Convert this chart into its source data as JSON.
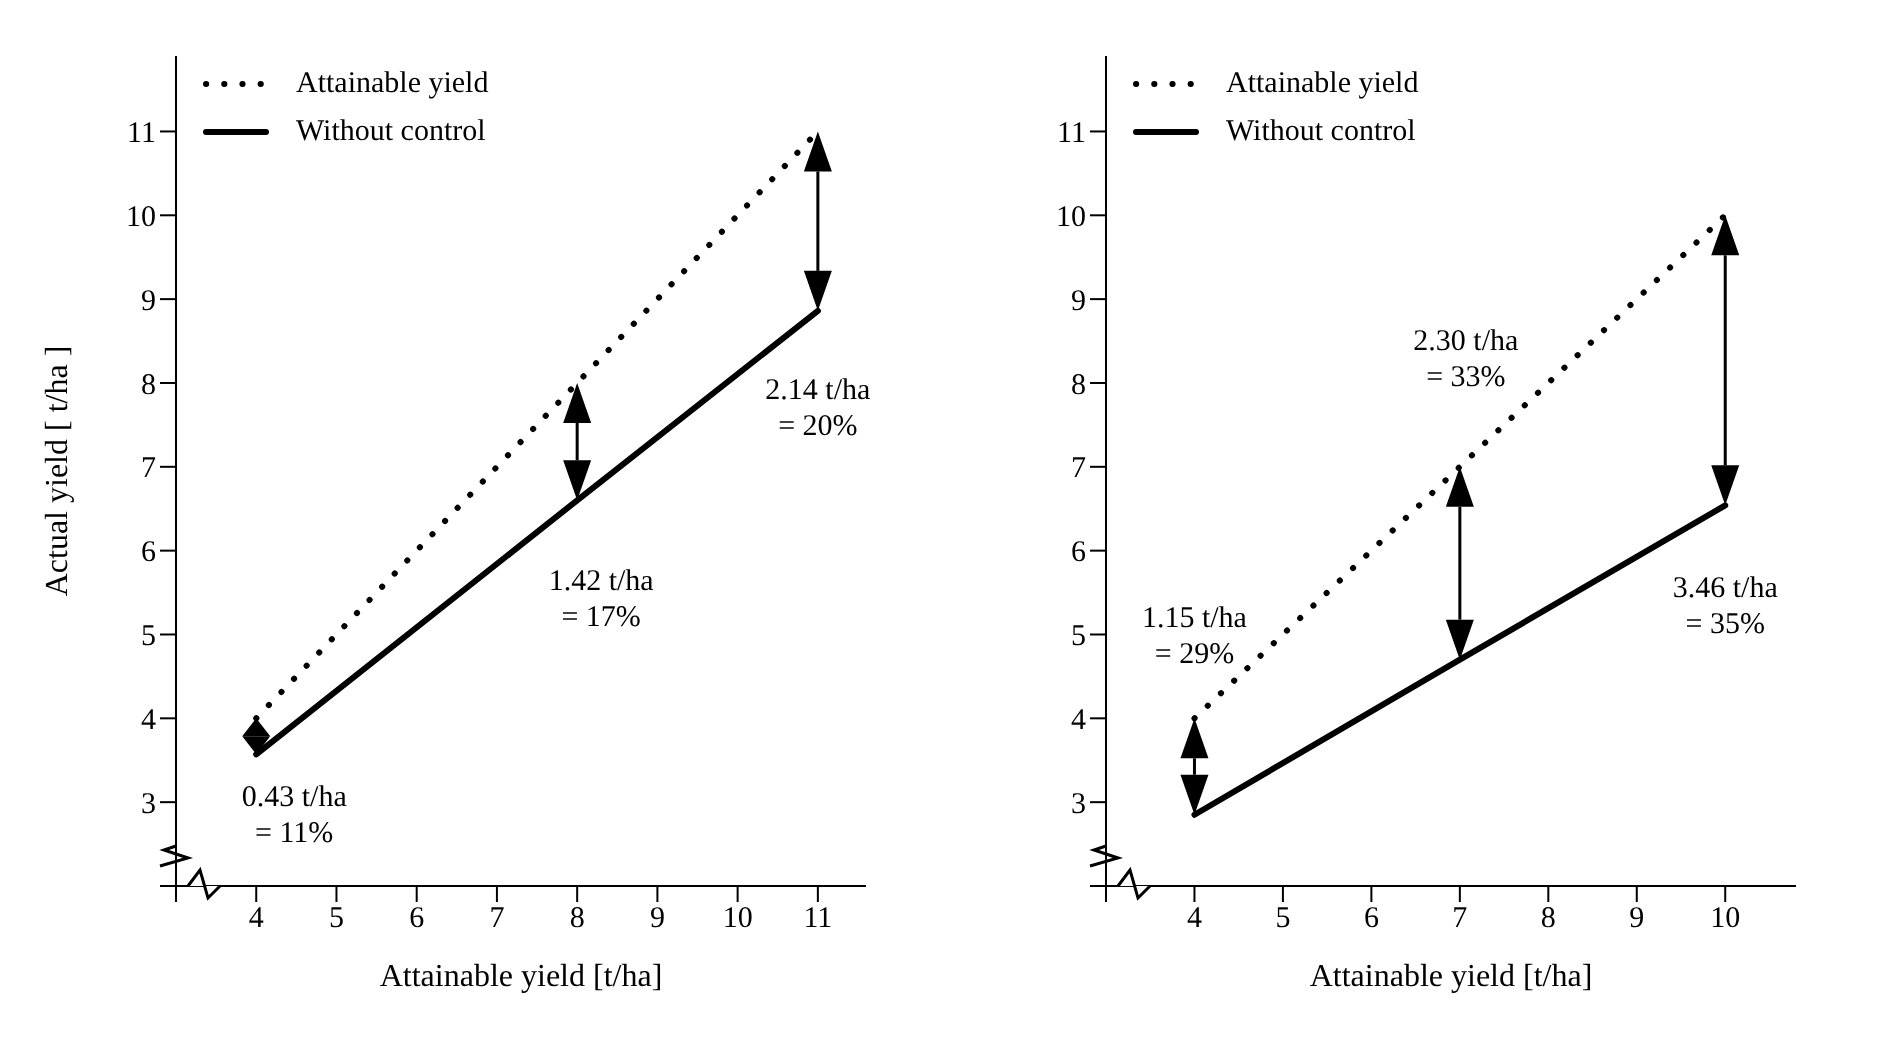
{
  "chart_data": [
    {
      "type": "line",
      "xlabel": "Attainable yield [t/ha]",
      "ylabel": "Actual yield  [ t/ha ]",
      "xlim": [
        3,
        11.6
      ],
      "ylim": [
        2,
        11.9
      ],
      "xticks": [
        {
          "value": 3,
          "label": null
        },
        4,
        5,
        6,
        7,
        8,
        9,
        10,
        11
      ],
      "yticks": [
        {
          "value": 2,
          "label": null
        },
        3,
        4,
        5,
        6,
        7,
        8,
        9,
        10,
        11
      ],
      "x": [
        4,
        8,
        11
      ],
      "legend": "top left",
      "grid": false,
      "series": [
        {
          "name": "Attainable yield",
          "color": "#000000",
          "line_style": "dotted",
          "values": [
            4,
            8,
            11
          ]
        },
        {
          "name": "Without control",
          "color": "#000000",
          "line_style": "solid",
          "values": [
            3.57,
            6.6,
            8.86
          ]
        }
      ],
      "annotations": [
        "0.43 t/ha\n= 11%",
        "1.42 t/ha\n= 17%",
        "2.14 t/ha\n= 20%"
      ]
    },
    {
      "type": "line",
      "xlabel": "Attainable yield [t/ha]",
      "xlim": [
        3,
        10.8
      ],
      "ylim": [
        2,
        11.9
      ],
      "xticks": [
        {
          "value": 3,
          "label": null
        },
        4,
        5,
        6,
        7,
        8,
        9,
        10
      ],
      "yticks": [
        {
          "value": 2,
          "label": null
        },
        3,
        4,
        5,
        6,
        7,
        8,
        9,
        10,
        11
      ],
      "x": [
        4,
        7,
        10
      ],
      "legend": "top left",
      "grid": false,
      "series": [
        {
          "name": "Attainable yield",
          "color": "#000000",
          "line_style": "dotted",
          "values": [
            4,
            7,
            10
          ]
        },
        {
          "name": "Without control",
          "color": "#000000",
          "line_style": "solid",
          "values": [
            2.85,
            4.7,
            6.54
          ]
        }
      ],
      "annotations": [
        "1.15 t/ha\n= 29%",
        "2.30 t/ha\n= 33%",
        "3.46 t/ha\n= 35%"
      ]
    }
  ]
}
